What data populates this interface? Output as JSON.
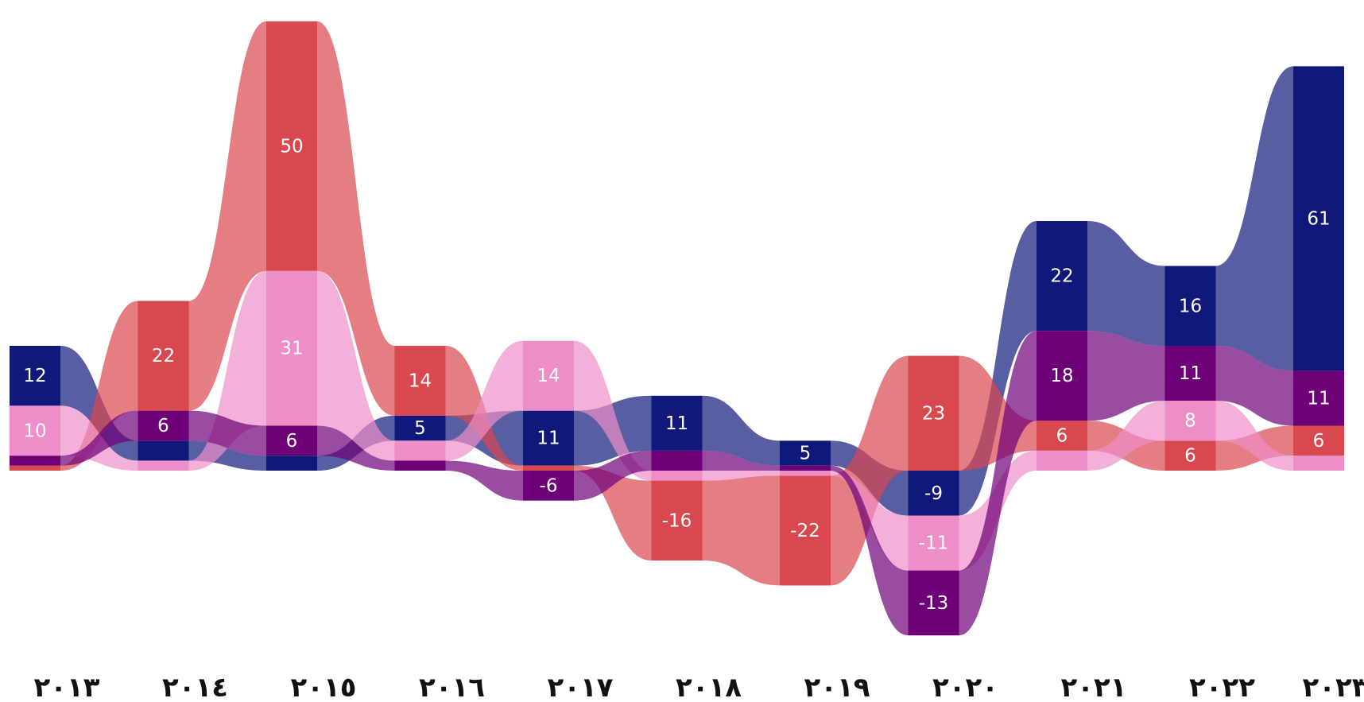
{
  "chart_data": {
    "type": "area",
    "title": "",
    "xlabel": "",
    "ylabel": "",
    "grid": false,
    "categories": [
      "٢٠١٣",
      "٢٠١٤",
      "٢٠١٥",
      "٢٠١٦",
      "٢٠١٧",
      "٢٠١٨",
      "٢٠١٩",
      "٢٠٢٠",
      "٢٠٢١",
      "٢٠٢٢",
      "٢٠٢٣"
    ],
    "series": [
      {
        "color": "#10197A",
        "values": [
          12,
          4,
          3,
          5,
          11,
          11,
          5,
          -9,
          22,
          16,
          61
        ]
      },
      {
        "color": "#D9474F",
        "values": [
          1,
          22,
          50,
          14,
          1,
          -16,
          -22,
          23,
          6,
          6,
          6
        ]
      },
      {
        "color": "#EE8EC8",
        "values": [
          10,
          2,
          31,
          4,
          14,
          -2,
          -1,
          -11,
          4,
          8,
          3
        ]
      },
      {
        "color": "#6E0078",
        "values": [
          2,
          6,
          6,
          2,
          -6,
          4,
          1,
          -13,
          18,
          11,
          11
        ]
      }
    ],
    "ylim": [
      -35,
      93
    ]
  }
}
